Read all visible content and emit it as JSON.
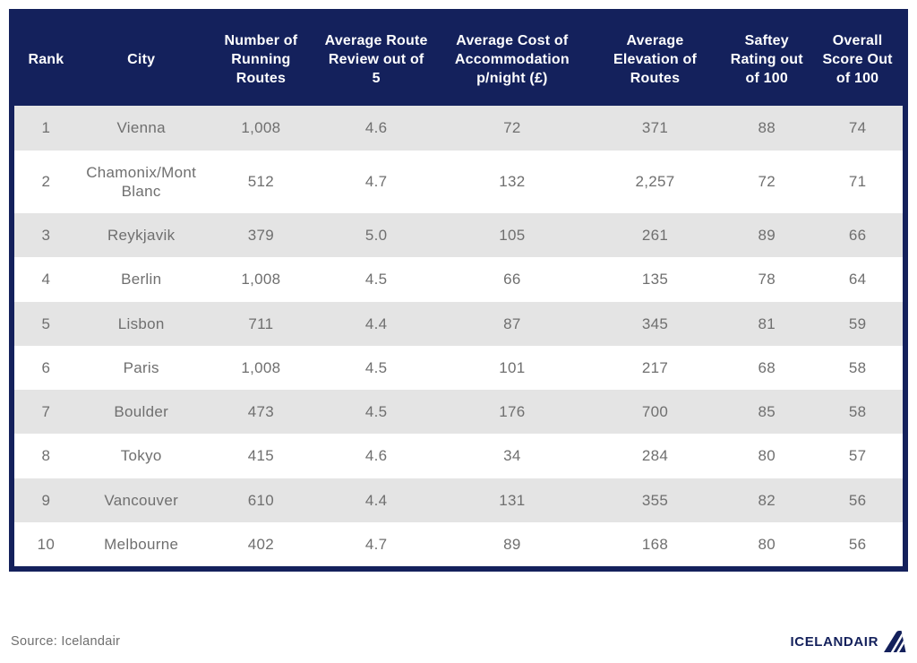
{
  "chart_data": {
    "type": "table",
    "title": "",
    "columns": [
      {
        "key": "rank",
        "label": "Rank"
      },
      {
        "key": "city",
        "label": "City"
      },
      {
        "key": "running-routes",
        "label": "Number of Running Routes"
      },
      {
        "key": "route-review",
        "label": "Average Route Review out of 5"
      },
      {
        "key": "accommodation-cost",
        "label": "Average Cost of Accommodation p/night (£)"
      },
      {
        "key": "elevation",
        "label": "Average Elevation of Routes"
      },
      {
        "key": "safety-rating",
        "label": "Saftey Rating out of 100"
      },
      {
        "key": "overall-score",
        "label": "Overall Score Out of 100"
      }
    ],
    "rows": [
      [
        "1",
        "Vienna",
        "1,008",
        "4.6",
        "72",
        "371",
        "88",
        "74"
      ],
      [
        "2",
        "Chamonix/Mont Blanc",
        "512",
        "4.7",
        "132",
        "2,257",
        "72",
        "71"
      ],
      [
        "3",
        "Reykjavik",
        "379",
        "5.0",
        "105",
        "261",
        "89",
        "66"
      ],
      [
        "4",
        "Berlin",
        "1,008",
        "4.5",
        "66",
        "135",
        "78",
        "64"
      ],
      [
        "5",
        "Lisbon",
        "711",
        "4.4",
        "87",
        "345",
        "81",
        "59"
      ],
      [
        "6",
        "Paris",
        "1,008",
        "4.5",
        "101",
        "217",
        "68",
        "58"
      ],
      [
        "7",
        "Boulder",
        "473",
        "4.5",
        "176",
        "700",
        "85",
        "58"
      ],
      [
        "8",
        "Tokyo",
        "415",
        "4.6",
        "34",
        "284",
        "80",
        "57"
      ],
      [
        "9",
        "Vancouver",
        "610",
        "4.4",
        "131",
        "355",
        "82",
        "56"
      ],
      [
        "10",
        "Melbourne",
        "402",
        "4.7",
        "89",
        "168",
        "80",
        "56"
      ]
    ]
  },
  "footer": {
    "source": "Source: Icelandair",
    "brand": "ICELANDAIR"
  },
  "colors": {
    "header_bg": "#14215C",
    "header_text": "#FFFFFF",
    "row_alt_bg": "#E4E4E4",
    "row_bg": "#FFFFFF",
    "data_text": "#6F6F6F",
    "brand_navy": "#13205B"
  }
}
